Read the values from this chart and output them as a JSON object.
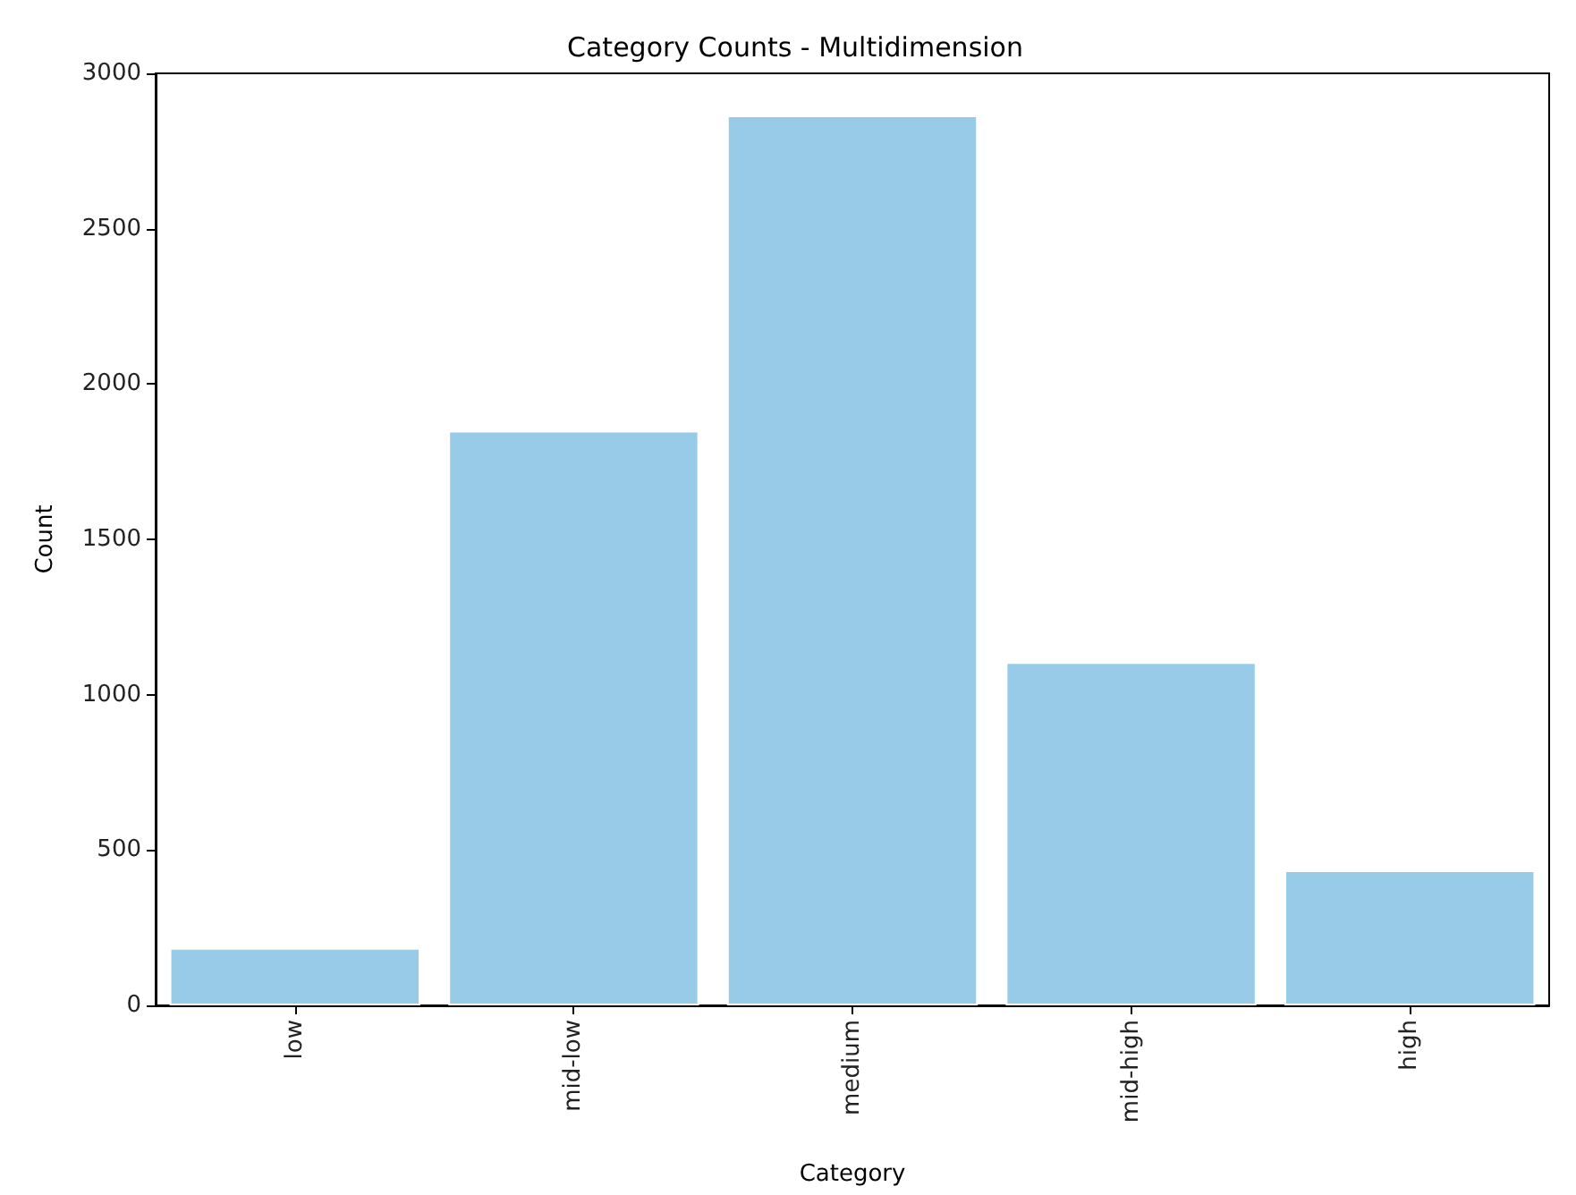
{
  "chart_data": {
    "type": "bar",
    "title": "Category Counts - Multidimension",
    "xlabel": "Category",
    "ylabel": "Count",
    "categories": [
      "low",
      "mid-low",
      "medium",
      "mid-high",
      "high"
    ],
    "values": [
      185,
      1850,
      2865,
      1105,
      435
    ],
    "color": "#97cbe8",
    "ylim": [
      0,
      3000
    ],
    "yticks": [
      0,
      500,
      1000,
      1500,
      2000,
      2500,
      3000
    ],
    "grid": false
  }
}
